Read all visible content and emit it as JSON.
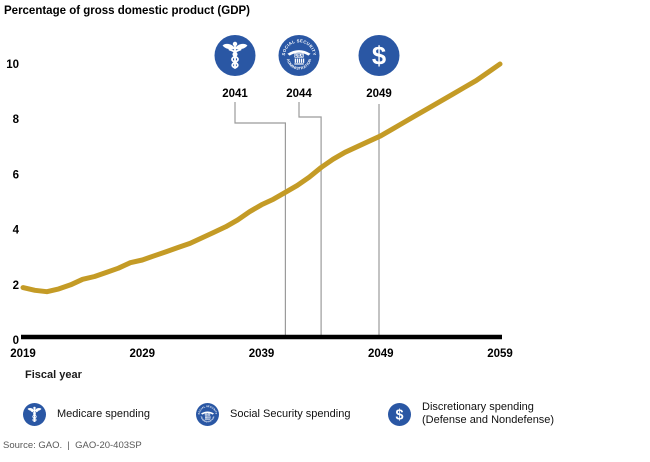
{
  "title": "Percentage of gross domestic product (GDP)",
  "colors": {
    "line": "#C49B26",
    "icon_blue": "#2A57A4",
    "leader_gray": "#9B9B9B",
    "axis_black": "#000000",
    "source_gray": "#585858"
  },
  "chart_data": {
    "type": "line",
    "title": "Percentage of gross domestic product (GDP)",
    "xlabel": "Fiscal year",
    "ylabel": "Percentage of gross domestic product (GDP)",
    "x": [
      2019,
      2020,
      2021,
      2022,
      2023,
      2024,
      2025,
      2026,
      2027,
      2028,
      2029,
      2030,
      2031,
      2032,
      2033,
      2034,
      2035,
      2036,
      2037,
      2038,
      2039,
      2040,
      2041,
      2042,
      2043,
      2044,
      2045,
      2046,
      2047,
      2048,
      2049,
      2050,
      2051,
      2052,
      2053,
      2054,
      2055,
      2056,
      2057,
      2058,
      2059
    ],
    "values": [
      1.9,
      1.8,
      1.75,
      1.85,
      2.0,
      2.2,
      2.3,
      2.45,
      2.6,
      2.8,
      2.9,
      3.05,
      3.2,
      3.35,
      3.5,
      3.7,
      3.9,
      4.1,
      4.35,
      4.65,
      4.9,
      5.1,
      5.35,
      5.6,
      5.9,
      6.25,
      6.55,
      6.8,
      7.0,
      7.2,
      7.4,
      7.65,
      7.9,
      8.15,
      8.4,
      8.65,
      8.9,
      9.15,
      9.4,
      9.7,
      10.0
    ],
    "ylim": [
      0,
      10
    ],
    "yticks": [
      0,
      2,
      4,
      6,
      8,
      10
    ],
    "xticks": [
      2019,
      2029,
      2039,
      2049,
      2059
    ],
    "grid": false,
    "legend_position": "bottom",
    "milestones": [
      {
        "year": 2041,
        "label": "2041",
        "icon": "medicare-icon",
        "icon_cx": 235
      },
      {
        "year": 2044,
        "label": "2044",
        "icon": "social-security-icon",
        "icon_cx": 299
      },
      {
        "year": 2049,
        "label": "2049",
        "icon": "dollar-icon",
        "icon_cx": 379
      }
    ]
  },
  "fiscal_year_label": "Fiscal year",
  "legend": {
    "items": [
      {
        "icon": "medicare-icon",
        "label": "Medicare spending"
      },
      {
        "icon": "social-security-icon",
        "label": "Social Security spending"
      },
      {
        "icon": "dollar-icon",
        "label": "Discretionary spending",
        "label2": "(Defense and Nondefense)"
      }
    ]
  },
  "source": "Source: GAO.  |  GAO-20-403SP"
}
